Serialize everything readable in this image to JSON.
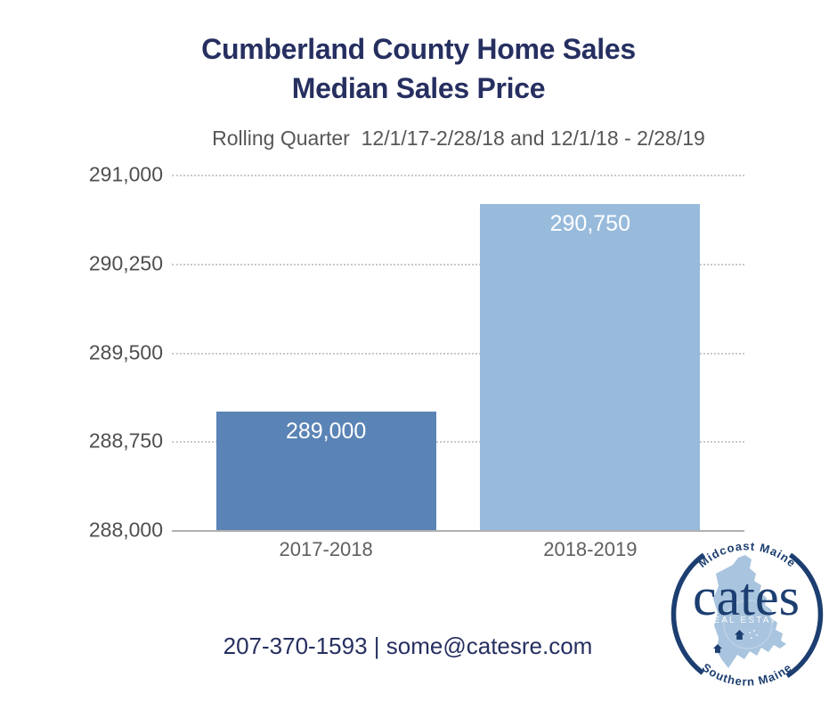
{
  "title": {
    "line1": "Cumberland County Home Sales",
    "line2": "Median Sales Price"
  },
  "subtitle": "Rolling Quarter  12/1/17-2/28/18 and 12/1/18 - 2/28/19",
  "footer": {
    "contact": "207-370-1593 | some@catesre.com"
  },
  "logo": {
    "brand": "cates",
    "subbrand": "REAL ESTATE",
    "arc_top_text": "Midcoast Maine",
    "arc_bottom_text": "Southern Maine",
    "navy": "#1c3e70",
    "map_blue": "#a9c4de"
  },
  "colors": {
    "title_navy": "#262f60",
    "subtitle_gray": "#565656",
    "tick_gray": "#4f4f4f",
    "grid_gray": "#c9c9c9",
    "axis_gray": "#b0b0b0",
    "bar_2017_2018": "#5b84b6",
    "bar_2018_2019": "#98bbdc"
  },
  "chart_data": {
    "type": "bar",
    "title": "Cumberland County Home Sales — Median Sales Price",
    "subtitle": "Rolling Quarter  12/1/17-2/28/18 and 12/1/18 - 2/28/19",
    "categories": [
      "2017-2018",
      "2018-2019"
    ],
    "values": [
      289000,
      290750
    ],
    "value_labels": [
      "289,000",
      "290,750"
    ],
    "bar_colors": [
      "#5b84b6",
      "#98bbdc"
    ],
    "xlabel": "",
    "ylabel": "",
    "ylim": [
      288000,
      291000
    ],
    "yticks": [
      {
        "value": 288000,
        "label": "288,000"
      },
      {
        "value": 288750,
        "label": "288,750"
      },
      {
        "value": 289500,
        "label": "289,500"
      },
      {
        "value": 290250,
        "label": "290,250"
      },
      {
        "value": 291000,
        "label": "291,000"
      }
    ],
    "grid": "dotted-horizontal",
    "legend": "none"
  }
}
